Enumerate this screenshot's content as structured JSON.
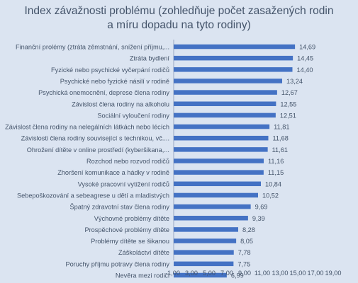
{
  "chart_data": {
    "type": "bar",
    "orientation": "horizontal",
    "title_lines": [
      "Index závažnosti problému (zohledňuje počet zasažených rodin",
      "a míru dopadu na tyto rodiny)"
    ],
    "categories": [
      "Finanční prolémy (ztráta zěmstnání, snížení příjmu,...",
      "Ztráta bydlení",
      "Fyzické nebo psychické vyčerpání rodičů",
      "Psychické nebo fyzické násilí v rodině",
      "Psychická onemocnění, deprese člena rodiny",
      "Závislost člena rodiny na alkoholu",
      "Sociální vyloučení rodiny",
      "Závislost člena rodiny na nelegálních látkách nebo lécích",
      "Závislosti člena rodiny související s technikou, vč....",
      "Ohrožení dítěte v online prostředí (kyberšikana,...",
      "Rozchod nebo rozvod rodičů",
      "Zhoršení komunikace a hádky v rodině",
      "Vysoké pracovní vytížení rodičů",
      "Sebepoškozování a sebeagrese u dětí a mladistvých",
      "Špatný zdravotní stav člena rodiny",
      "Výchovné problémy dítěte",
      "Prospěchové problémy dítěte",
      "Problémy dítěte se šikanou",
      "Záškoláctví dítěte",
      "Poruchy příjmu potravy člena rodiny",
      "Nevěra mezi rodiči"
    ],
    "values": [
      14.69,
      14.45,
      14.4,
      13.24,
      12.67,
      12.55,
      12.51,
      11.81,
      11.68,
      11.61,
      11.16,
      11.15,
      10.84,
      10.52,
      9.69,
      9.39,
      8.28,
      8.05,
      7.78,
      7.75,
      6.99
    ],
    "value_labels": [
      "14,69",
      "14,45",
      "14,40",
      "13,24",
      "12,67",
      "12,55",
      "12,51",
      "11,81",
      "11,68",
      "11,61",
      "11,16",
      "11,15",
      "10,84",
      "10,52",
      "9,69",
      "9,39",
      "8,28",
      "8,05",
      "7,78",
      "7,75",
      "6,99"
    ],
    "xlim": [
      1,
      19
    ],
    "x_ticks": [
      1,
      3,
      5,
      7,
      9,
      11,
      13,
      15,
      17,
      19
    ],
    "x_tick_labels": [
      "1,00",
      "3,00",
      "5,00",
      "7,00",
      "9,00",
      "11,00",
      "13,00",
      "15,00",
      "17,00",
      "19,00"
    ],
    "grid": false,
    "legend": "none",
    "colors": {
      "bar": "#4472c4",
      "text": "#44546a",
      "background": "#dbe4f1",
      "axis": "#9aa9c4"
    }
  }
}
